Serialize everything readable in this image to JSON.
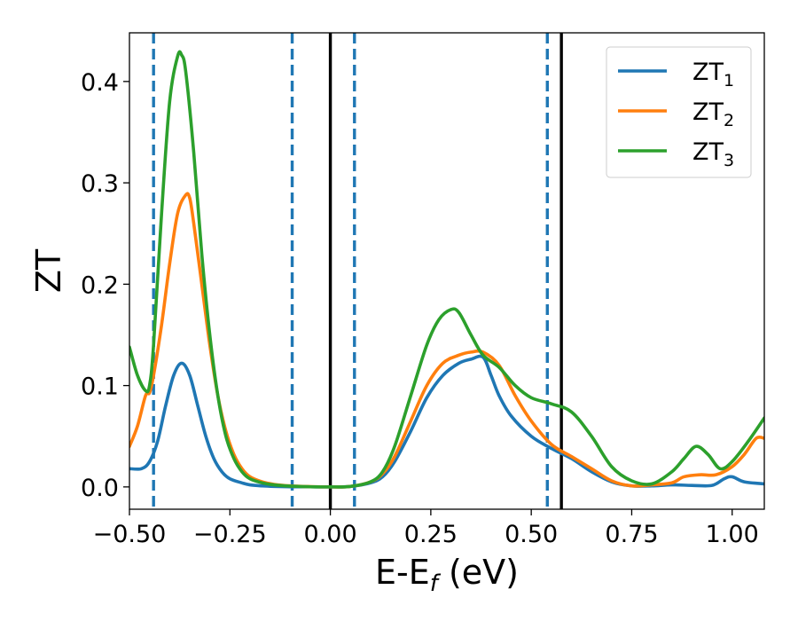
{
  "chart_data": {
    "type": "line",
    "xlabel": "E-E",
    "xlabel_sub": "f",
    "xlabel_unit": " (eV)",
    "ylabel": "ZT",
    "xlim": [
      -0.5,
      1.08
    ],
    "ylim": [
      -0.022,
      0.448
    ],
    "xticks": [
      -0.5,
      -0.25,
      0.0,
      0.25,
      0.5,
      0.75,
      1.0
    ],
    "xtick_labels": [
      "−0.50",
      "−0.25",
      "0.00",
      "0.25",
      "0.50",
      "0.75",
      "1.00"
    ],
    "yticks": [
      0.0,
      0.1,
      0.2,
      0.3,
      0.4
    ],
    "ytick_labels": [
      "0.0",
      "0.1",
      "0.2",
      "0.3",
      "0.4"
    ],
    "grid": false,
    "legend_position": "top-right",
    "vlines_solid": [
      0.0,
      0.575
    ],
    "vlines_dashed": [
      -0.44,
      -0.095,
      0.06,
      0.54
    ],
    "vline_solid_color": "#000000",
    "vline_dashed_color": "#1f77b4",
    "series": [
      {
        "name": "ZT",
        "name_sub": "1",
        "color": "#1f77b4",
        "x": [
          -0.5,
          -0.47,
          -0.45,
          -0.43,
          -0.41,
          -0.39,
          -0.37,
          -0.35,
          -0.33,
          -0.31,
          -0.29,
          -0.27,
          -0.25,
          -0.22,
          -0.2,
          -0.17,
          -0.14,
          -0.1,
          -0.05,
          0.0,
          0.05,
          0.1,
          0.13,
          0.16,
          0.2,
          0.24,
          0.28,
          0.32,
          0.35,
          0.38,
          0.4,
          0.42,
          0.45,
          0.5,
          0.55,
          0.6,
          0.65,
          0.7,
          0.75,
          0.8,
          0.85,
          0.9,
          0.95,
          0.98,
          1.0,
          1.03,
          1.08
        ],
        "y": [
          0.018,
          0.018,
          0.025,
          0.045,
          0.08,
          0.11,
          0.122,
          0.11,
          0.08,
          0.05,
          0.028,
          0.015,
          0.008,
          0.004,
          0.002,
          0.001,
          0.0005,
          0.0002,
          0.0001,
          0.0,
          0.0005,
          0.004,
          0.01,
          0.025,
          0.055,
          0.088,
          0.11,
          0.122,
          0.126,
          0.128,
          0.11,
          0.09,
          0.07,
          0.05,
          0.038,
          0.028,
          0.015,
          0.005,
          0.001,
          0.001,
          0.002,
          0.0015,
          0.0015,
          0.008,
          0.01,
          0.005,
          0.003
        ]
      },
      {
        "name": "ZT",
        "name_sub": "2",
        "color": "#ff7f0e",
        "x": [
          -0.5,
          -0.48,
          -0.46,
          -0.45,
          -0.44,
          -0.42,
          -0.4,
          -0.38,
          -0.36,
          -0.35,
          -0.34,
          -0.32,
          -0.3,
          -0.28,
          -0.26,
          -0.24,
          -0.22,
          -0.2,
          -0.17,
          -0.14,
          -0.1,
          -0.05,
          0.0,
          0.05,
          0.1,
          0.13,
          0.16,
          0.2,
          0.24,
          0.28,
          0.32,
          0.35,
          0.38,
          0.42,
          0.46,
          0.5,
          0.55,
          0.6,
          0.65,
          0.7,
          0.75,
          0.8,
          0.85,
          0.88,
          0.92,
          0.96,
          1.0,
          1.03,
          1.06,
          1.08
        ],
        "y": [
          0.04,
          0.06,
          0.09,
          0.093,
          0.11,
          0.16,
          0.22,
          0.27,
          0.288,
          0.285,
          0.26,
          0.2,
          0.14,
          0.09,
          0.055,
          0.032,
          0.018,
          0.01,
          0.005,
          0.0025,
          0.001,
          0.0003,
          0.0,
          0.0005,
          0.005,
          0.013,
          0.03,
          0.065,
          0.1,
          0.122,
          0.13,
          0.133,
          0.133,
          0.12,
          0.09,
          0.065,
          0.042,
          0.03,
          0.018,
          0.006,
          0.001,
          0.002,
          0.004,
          0.01,
          0.012,
          0.012,
          0.02,
          0.032,
          0.048,
          0.048
        ]
      },
      {
        "name": "ZT",
        "name_sub": "3",
        "color": "#2ca02c",
        "x": [
          -0.5,
          -0.48,
          -0.46,
          -0.45,
          -0.44,
          -0.42,
          -0.4,
          -0.38,
          -0.37,
          -0.36,
          -0.34,
          -0.32,
          -0.3,
          -0.28,
          -0.26,
          -0.24,
          -0.22,
          -0.2,
          -0.17,
          -0.14,
          -0.1,
          -0.05,
          0.0,
          0.05,
          0.1,
          0.13,
          0.16,
          0.2,
          0.24,
          0.27,
          0.3,
          0.32,
          0.35,
          0.38,
          0.42,
          0.46,
          0.5,
          0.55,
          0.6,
          0.65,
          0.7,
          0.75,
          0.8,
          0.85,
          0.88,
          0.91,
          0.94,
          0.97,
          1.0,
          1.04,
          1.08
        ],
        "y": [
          0.138,
          0.11,
          0.095,
          0.1,
          0.14,
          0.27,
          0.38,
          0.425,
          0.426,
          0.41,
          0.33,
          0.23,
          0.15,
          0.09,
          0.05,
          0.028,
          0.015,
          0.008,
          0.004,
          0.002,
          0.0008,
          0.0002,
          0.0,
          0.0005,
          0.005,
          0.015,
          0.04,
          0.09,
          0.14,
          0.165,
          0.175,
          0.172,
          0.15,
          0.13,
          0.118,
          0.1,
          0.088,
          0.082,
          0.074,
          0.05,
          0.02,
          0.006,
          0.003,
          0.015,
          0.028,
          0.04,
          0.032,
          0.018,
          0.025,
          0.045,
          0.068
        ]
      }
    ]
  }
}
